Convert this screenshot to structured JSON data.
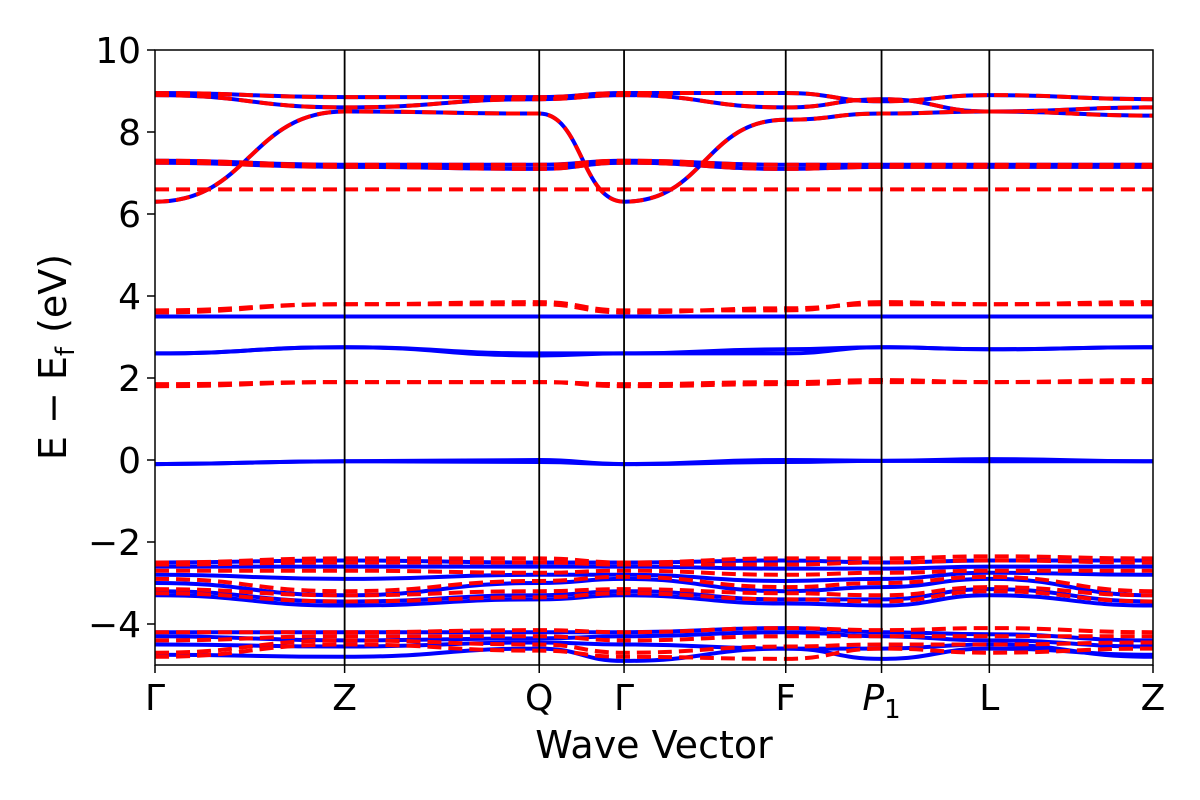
{
  "chart_data": {
    "type": "line",
    "title": "",
    "xlabel": "Wave Vector",
    "ylabel_main": "E − E",
    "ylabel_sub": "f",
    "ylabel_unit": "(eV)",
    "ylim": [
      -5,
      10
    ],
    "yticks": [
      -4,
      -2,
      0,
      2,
      4,
      6,
      8,
      10
    ],
    "ytick_labels": [
      "−4",
      "−2",
      "0",
      "2",
      "4",
      "6",
      "8",
      "10"
    ],
    "kpath_ticks": [
      {
        "label": "Γ",
        "sub": "",
        "x": 0.0
      },
      {
        "label": "Z",
        "sub": "",
        "x": 0.19
      },
      {
        "label": "Q",
        "sub": "",
        "x": 0.385
      },
      {
        "label": "Γ",
        "sub": "",
        "x": 0.47
      },
      {
        "label": "F",
        "sub": "",
        "x": 0.632
      },
      {
        "label": "P",
        "sub": "1",
        "x": 0.728
      },
      {
        "label": "L",
        "sub": "",
        "x": 0.836
      },
      {
        "label": "Z",
        "sub": "",
        "x": 1.0
      }
    ],
    "colors": {
      "solid": "#0000ff",
      "dashed": "#ff0000",
      "axis": "#000000"
    },
    "series": [
      {
        "style": "solid",
        "bands": [
          [
            -4.75,
            -4.8,
            -4.6,
            -4.9,
            -4.6,
            -4.85,
            -4.6,
            -4.75
          ],
          [
            -4.5,
            -4.55,
            -4.45,
            -4.5,
            -4.6,
            -4.6,
            -4.5,
            -4.8
          ],
          [
            -4.3,
            -4.4,
            -4.35,
            -4.3,
            -4.2,
            -4.3,
            -4.4,
            -4.55
          ],
          [
            -4.2,
            -4.2,
            -4.2,
            -4.2,
            -4.1,
            -4.2,
            -4.25,
            -4.4
          ],
          [
            -3.3,
            -3.55,
            -3.4,
            -3.3,
            -3.5,
            -3.55,
            -3.3,
            -3.55
          ],
          [
            -3.2,
            -3.45,
            -3.3,
            -3.2,
            -3.4,
            -3.4,
            -3.15,
            -3.45
          ],
          [
            -3.0,
            -3.3,
            -3.0,
            -2.9,
            -3.2,
            -3.1,
            -2.9,
            -3.3
          ],
          [
            -2.8,
            -2.9,
            -2.8,
            -2.8,
            -2.95,
            -2.9,
            -2.75,
            -2.8
          ],
          [
            -2.6,
            -2.6,
            -2.6,
            -2.6,
            -2.65,
            -2.65,
            -2.6,
            -2.6
          ],
          [
            -2.5,
            -2.45,
            -2.5,
            -2.5,
            -2.45,
            -2.5,
            -2.45,
            -2.45
          ],
          [
            -0.1,
            -0.03,
            0.0,
            -0.1,
            -0.05,
            -0.02,
            -0.03,
            -0.03
          ],
          [
            -0.1,
            -0.03,
            -0.05,
            -0.1,
            0.0,
            -0.02,
            0.02,
            -0.03
          ],
          [
            2.6,
            2.75,
            2.6,
            2.6,
            2.6,
            2.75,
            2.7,
            2.75
          ],
          [
            2.6,
            2.75,
            2.55,
            2.6,
            2.7,
            2.75,
            2.7,
            2.75
          ],
          [
            3.5,
            3.5,
            3.5,
            3.5,
            3.5,
            3.5,
            3.5,
            3.5
          ],
          [
            7.3,
            7.2,
            7.2,
            7.3,
            7.2,
            7.2,
            7.2,
            7.2
          ],
          [
            7.25,
            7.15,
            7.1,
            7.25,
            7.1,
            7.15,
            7.15,
            7.15
          ],
          [
            6.3,
            8.5,
            8.45,
            6.3,
            8.3,
            8.45,
            8.5,
            8.4
          ],
          [
            8.9,
            8.6,
            8.8,
            8.9,
            8.6,
            8.8,
            8.5,
            8.6
          ],
          [
            8.95,
            8.85,
            8.85,
            8.95,
            8.95,
            8.75,
            8.9,
            8.8
          ]
        ]
      },
      {
        "style": "dashed",
        "bands": [
          [
            -4.8,
            -4.5,
            -4.65,
            -4.8,
            -4.85,
            -4.6,
            -4.7,
            -4.6
          ],
          [
            -4.7,
            -4.4,
            -4.5,
            -4.7,
            -4.55,
            -4.5,
            -4.5,
            -4.45
          ],
          [
            -4.4,
            -4.3,
            -4.3,
            -4.4,
            -4.3,
            -4.3,
            -4.3,
            -4.3
          ],
          [
            -4.2,
            -4.2,
            -4.15,
            -4.2,
            -4.1,
            -4.15,
            -4.1,
            -4.2
          ],
          [
            -3.25,
            -3.45,
            -3.35,
            -3.25,
            -3.4,
            -3.45,
            -3.2,
            -3.45
          ],
          [
            -3.15,
            -3.3,
            -3.2,
            -3.15,
            -3.25,
            -3.3,
            -3.1,
            -3.3
          ],
          [
            -2.9,
            -3.2,
            -2.95,
            -2.85,
            -3.1,
            -3.0,
            -2.85,
            -3.2
          ],
          [
            -2.7,
            -2.7,
            -2.75,
            -2.7,
            -2.8,
            -2.75,
            -2.7,
            -2.7
          ],
          [
            -2.55,
            -2.5,
            -2.5,
            -2.55,
            -2.55,
            -2.5,
            -2.45,
            -2.5
          ],
          [
            -2.5,
            -2.4,
            -2.4,
            -2.5,
            -2.4,
            -2.4,
            -2.35,
            -2.4
          ],
          [
            1.8,
            1.9,
            1.9,
            1.8,
            1.85,
            1.9,
            1.9,
            1.9
          ],
          [
            1.85,
            1.9,
            1.9,
            1.85,
            1.9,
            1.95,
            1.9,
            1.95
          ],
          [
            3.6,
            3.8,
            3.8,
            3.6,
            3.7,
            3.8,
            3.8,
            3.8
          ],
          [
            3.65,
            3.8,
            3.85,
            3.65,
            3.65,
            3.85,
            3.8,
            3.85
          ],
          [
            6.6,
            6.6,
            6.6,
            6.6,
            6.6,
            6.6,
            6.6,
            6.6
          ],
          [
            7.3,
            7.2,
            7.2,
            7.3,
            7.2,
            7.2,
            7.2,
            7.2
          ],
          [
            7.25,
            7.15,
            7.1,
            7.25,
            7.1,
            7.15,
            7.15,
            7.15
          ],
          [
            6.3,
            8.5,
            8.45,
            6.3,
            8.3,
            8.45,
            8.5,
            8.4
          ],
          [
            8.9,
            8.6,
            8.8,
            8.9,
            8.6,
            8.8,
            8.5,
            8.6
          ],
          [
            8.95,
            8.85,
            8.85,
            8.95,
            8.95,
            8.75,
            8.9,
            8.8
          ]
        ]
      }
    ],
    "grid": false,
    "legend": "none"
  }
}
